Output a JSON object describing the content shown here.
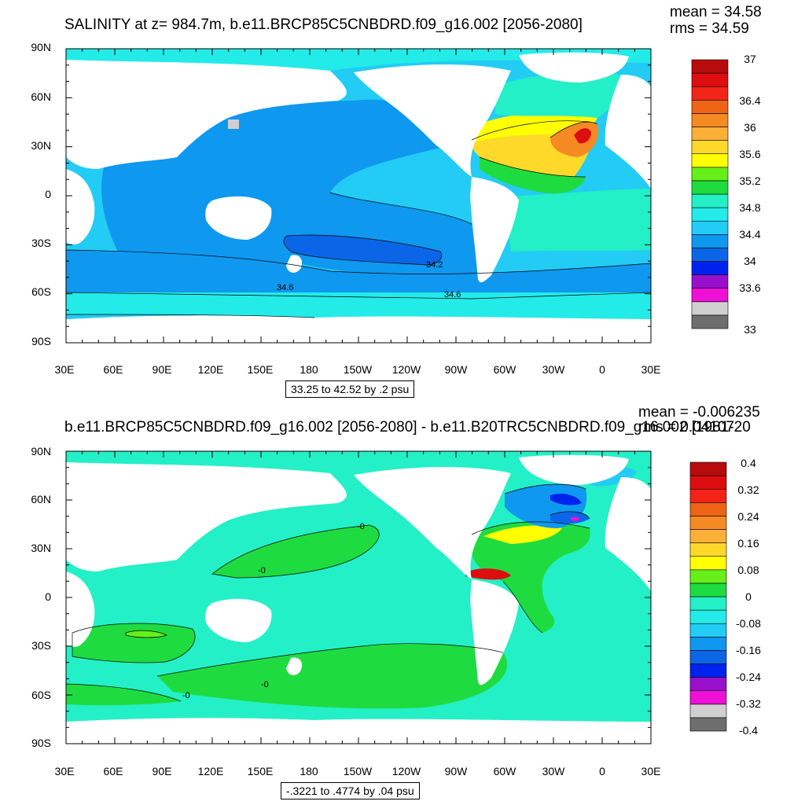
{
  "panels": [
    {
      "title": "SALINITY at z= 984.7m, b.e11.BRCP85C5CNBDRD.f09_g16.002 [2056-2080]",
      "mean": "mean = 34.58",
      "rms": "rms = 34.59",
      "info": "33.25 to 42.52 by .2 psu",
      "contour_labels": [
        "34.2",
        "34.6",
        "34.6"
      ],
      "colorbar": {
        "colors": [
          "#6e6e6e",
          "#d0d0d0",
          "#ee10d6",
          "#9810cc",
          "#0022ee",
          "#0a66e6",
          "#0e98f0",
          "#22ccf4",
          "#23ebe8",
          "#23f0c6",
          "#1edc40",
          "#66ef18",
          "#ffff00",
          "#ffd92a",
          "#fcb038",
          "#f58a22",
          "#ee6414",
          "#f22418",
          "#dd0d10",
          "#b80b0b"
        ],
        "labels": [
          "33",
          "33.6",
          "34",
          "34.4",
          "34.8",
          "35.2",
          "35.6",
          "36",
          "36.4",
          "37"
        ]
      }
    },
    {
      "title": "b.e11.BRCP85C5CNBDRD.f09_g16.002 [2056-2080] - b.e11.B20TRC5CNBDRD.f09_g16.002 [1981-20",
      "mean": "mean = -0.006235",
      "rms": "rms = 0.04107",
      "info": "-.3221 to .4774 by .04 psu",
      "contour_labels": [
        "-0",
        "-0",
        "-0",
        "-0"
      ],
      "colorbar": {
        "colors": [
          "#6e6e6e",
          "#d0d0d0",
          "#ee10d6",
          "#9810cc",
          "#0022ee",
          "#0a66e6",
          "#0e98f0",
          "#22ccf4",
          "#23ebe8",
          "#23f0c6",
          "#1edc40",
          "#66ef18",
          "#ffff00",
          "#ffd92a",
          "#fcb038",
          "#f58a22",
          "#ee6414",
          "#f22418",
          "#dd0d10",
          "#b80b0b"
        ],
        "labels": [
          "-0.4",
          "-0.32",
          "-0.24",
          "-0.16",
          "-0.08",
          "0",
          "0.08",
          "0.16",
          "0.24",
          "0.32",
          "0.4"
        ]
      }
    }
  ],
  "axes": {
    "y_labels": [
      "90N",
      "60N",
      "30N",
      "0",
      "30S",
      "60S",
      "90S"
    ],
    "x_labels": [
      "30E",
      "60E",
      "90E",
      "120E",
      "150E",
      "180",
      "150W",
      "120W",
      "90W",
      "60W",
      "30W",
      "0",
      "30E"
    ]
  }
}
